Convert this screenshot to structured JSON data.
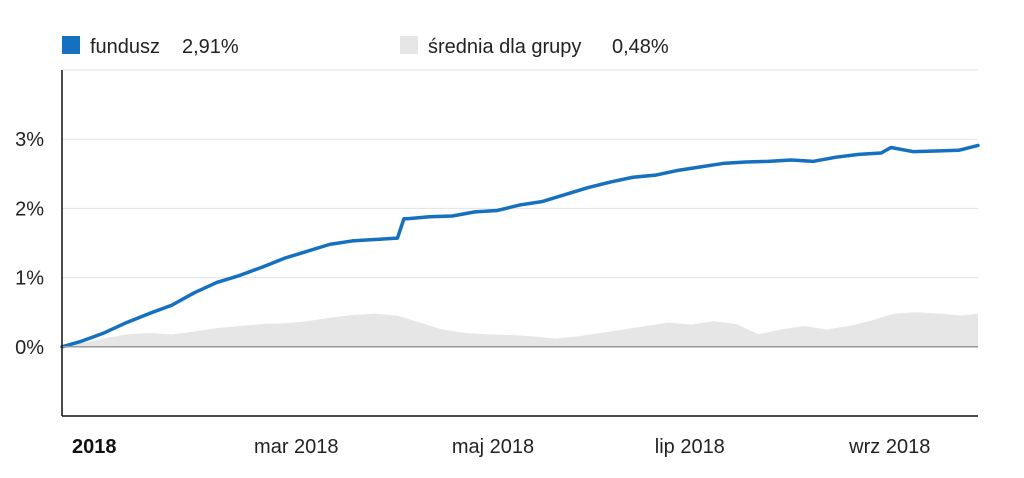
{
  "chart_data": {
    "type": "line",
    "title": "",
    "xlabel": "",
    "ylabel": "",
    "x_range": [
      "2018-01-01",
      "2018-10-12"
    ],
    "ylim": [
      -1.0,
      4.0
    ],
    "y_ticks": [
      0,
      1,
      2,
      3
    ],
    "y_tick_labels": [
      "0%",
      "1%",
      "2%",
      "3%"
    ],
    "x_ticks": [
      {
        "date": "2018-01-01",
        "label": "2018",
        "bold": true
      },
      {
        "date": "2018-03-01",
        "label": "mar 2018",
        "bold": false
      },
      {
        "date": "2018-05-01",
        "label": "maj 2018",
        "bold": false
      },
      {
        "date": "2018-07-01",
        "label": "lip 2018",
        "bold": false
      },
      {
        "date": "2018-09-01",
        "label": "wrz 2018",
        "bold": false
      }
    ],
    "grid": true,
    "legend_position": "top-left",
    "legend": [
      {
        "key": "fund",
        "label": "fundusz",
        "value": "2,91%",
        "color": "#1670c0"
      },
      {
        "key": "avg",
        "label": "średnia dla grupy",
        "value": "0,48%",
        "color": "#e6e6e6"
      }
    ],
    "series": [
      {
        "name": "fundusz",
        "color": "#1670c0",
        "style": "line",
        "x": [
          "2018-01-01",
          "2018-01-07",
          "2018-01-14",
          "2018-01-21",
          "2018-01-28",
          "2018-02-04",
          "2018-02-11",
          "2018-02-18",
          "2018-02-25",
          "2018-03-04",
          "2018-03-11",
          "2018-03-18",
          "2018-03-25",
          "2018-04-01",
          "2018-04-08",
          "2018-04-15",
          "2018-04-17",
          "2018-04-18",
          "2018-04-25",
          "2018-05-02",
          "2018-05-09",
          "2018-05-16",
          "2018-05-23",
          "2018-05-30",
          "2018-06-06",
          "2018-06-13",
          "2018-06-20",
          "2018-06-27",
          "2018-07-04",
          "2018-07-11",
          "2018-07-18",
          "2018-07-25",
          "2018-08-01",
          "2018-08-08",
          "2018-08-15",
          "2018-08-22",
          "2018-08-29",
          "2018-09-05",
          "2018-09-12",
          "2018-09-15",
          "2018-09-22",
          "2018-09-29",
          "2018-10-06",
          "2018-10-12"
        ],
        "values": [
          0.0,
          0.08,
          0.2,
          0.35,
          0.48,
          0.6,
          0.78,
          0.93,
          1.03,
          1.15,
          1.28,
          1.38,
          1.48,
          1.53,
          1.55,
          1.57,
          1.85,
          1.85,
          1.88,
          1.89,
          1.95,
          1.97,
          2.05,
          2.1,
          2.2,
          2.3,
          2.38,
          2.45,
          2.48,
          2.55,
          2.6,
          2.65,
          2.67,
          2.68,
          2.7,
          2.68,
          2.74,
          2.78,
          2.8,
          2.88,
          2.82,
          2.83,
          2.84,
          2.91
        ]
      },
      {
        "name": "średnia dla grupy",
        "color": "#e6e6e6",
        "style": "area",
        "x": [
          "2018-01-01",
          "2018-01-07",
          "2018-01-14",
          "2018-01-21",
          "2018-01-28",
          "2018-02-04",
          "2018-02-11",
          "2018-02-18",
          "2018-02-25",
          "2018-03-04",
          "2018-03-11",
          "2018-03-18",
          "2018-03-25",
          "2018-04-01",
          "2018-04-08",
          "2018-04-15",
          "2018-04-22",
          "2018-04-29",
          "2018-05-06",
          "2018-05-13",
          "2018-05-20",
          "2018-05-27",
          "2018-06-03",
          "2018-06-10",
          "2018-06-17",
          "2018-06-24",
          "2018-07-01",
          "2018-07-08",
          "2018-07-15",
          "2018-07-22",
          "2018-07-29",
          "2018-08-05",
          "2018-08-12",
          "2018-08-19",
          "2018-08-26",
          "2018-09-02",
          "2018-09-09",
          "2018-09-16",
          "2018-09-23",
          "2018-09-30",
          "2018-10-07",
          "2018-10-12"
        ],
        "values": [
          0.0,
          0.05,
          0.12,
          0.18,
          0.2,
          0.18,
          0.22,
          0.27,
          0.3,
          0.33,
          0.34,
          0.37,
          0.42,
          0.46,
          0.48,
          0.45,
          0.35,
          0.25,
          0.2,
          0.18,
          0.17,
          0.15,
          0.12,
          0.15,
          0.2,
          0.25,
          0.3,
          0.35,
          0.32,
          0.37,
          0.33,
          0.18,
          0.25,
          0.3,
          0.25,
          0.3,
          0.38,
          0.48,
          0.5,
          0.48,
          0.45,
          0.48
        ]
      }
    ]
  }
}
